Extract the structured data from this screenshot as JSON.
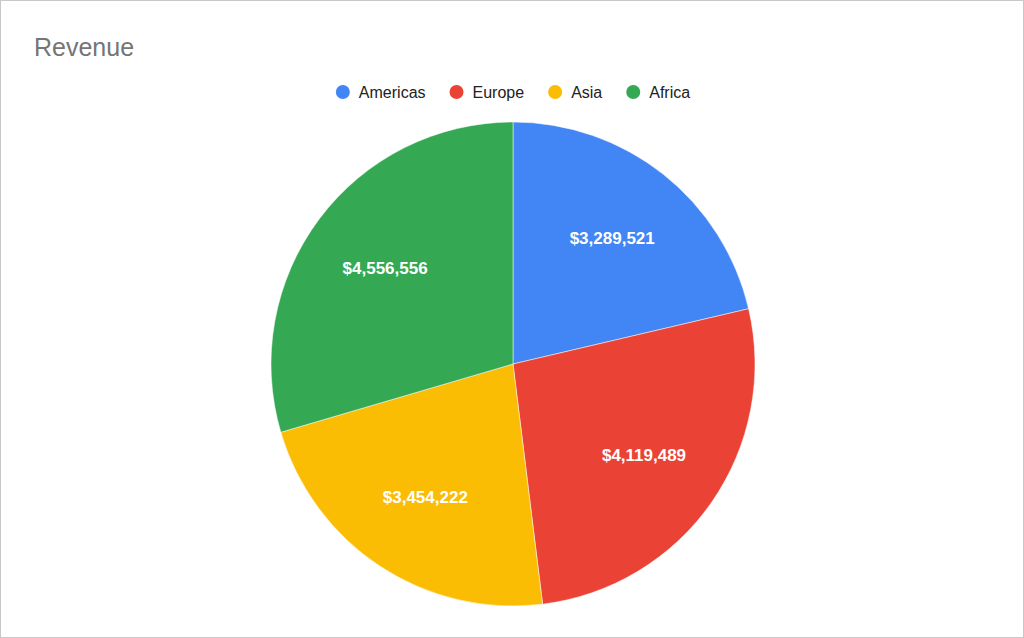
{
  "chart_data": {
    "type": "pie",
    "title": "Revenue",
    "categories": [
      "Americas",
      "Europe",
      "Asia",
      "Africa"
    ],
    "values": [
      3289521,
      4119489,
      3454222,
      4556556
    ],
    "value_labels": [
      "$3,289,521",
      "$4,119,489",
      "$3,454,222",
      "$4,556,556"
    ],
    "colors": [
      "#4285f4",
      "#ea4335",
      "#fbbc04",
      "#34a853"
    ],
    "legend": "top",
    "data_labels": true
  }
}
